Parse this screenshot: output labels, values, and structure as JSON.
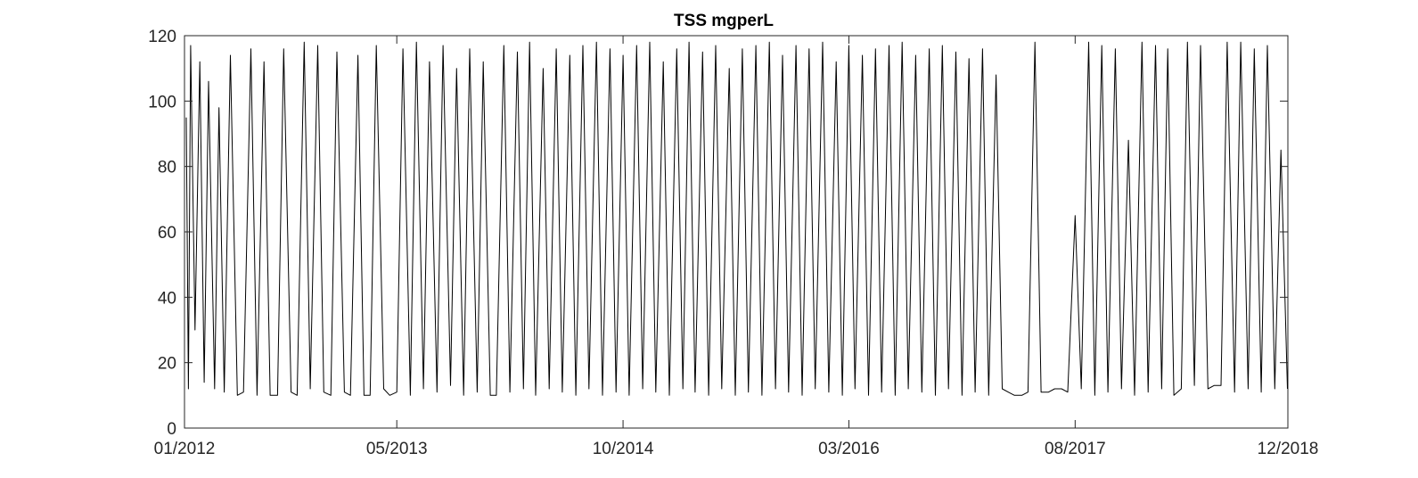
{
  "chart_data": {
    "type": "line",
    "title": "TSS mgperL",
    "xlabel": "",
    "ylabel": "",
    "x_tick_labels": [
      "01/2012",
      "05/2013",
      "10/2014",
      "03/2016",
      "08/2017",
      "12/2018"
    ],
    "x_ticks": [
      "2012-01-01",
      "2013-05-01",
      "2014-10-01",
      "2016-03-01",
      "2017-08-01",
      "2018-12-01"
    ],
    "xlim": [
      "2012-01-01",
      "2018-12-01"
    ],
    "y_ticks": [
      0,
      20,
      40,
      60,
      80,
      100,
      120
    ],
    "ylim": [
      0,
      120
    ],
    "grid": false,
    "colors": {
      "line": "#000000",
      "axes": "#262626"
    },
    "series": [
      {
        "x": [
          "2012-01-05",
          "2012-01-10",
          "2012-01-15",
          "2012-01-25",
          "2012-02-05",
          "2012-02-15",
          "2012-02-25",
          "2012-03-10",
          "2012-03-20",
          "2012-04-01",
          "2012-04-15",
          "2012-05-01",
          "2012-05-15",
          "2012-06-01",
          "2012-06-15",
          "2012-07-01",
          "2012-07-15",
          "2012-08-01",
          "2012-08-15",
          "2012-09-01",
          "2012-09-15",
          "2012-10-01",
          "2012-10-15",
          "2012-11-01",
          "2012-11-15",
          "2012-12-01",
          "2012-12-15",
          "2013-01-01",
          "2013-01-15",
          "2013-02-01",
          "2013-02-15",
          "2013-03-01",
          "2013-03-15",
          "2013-04-01",
          "2013-04-15",
          "2013-05-01",
          "2013-05-15",
          "2013-06-01",
          "2013-06-15",
          "2013-07-01",
          "2013-07-15",
          "2013-08-01",
          "2013-08-15",
          "2013-09-01",
          "2013-09-15",
          "2013-10-01",
          "2013-10-15",
          "2013-11-01",
          "2013-11-15",
          "2013-12-01",
          "2013-12-15",
          "2014-01-01",
          "2014-01-15",
          "2014-02-01",
          "2014-02-15",
          "2014-03-01",
          "2014-03-15",
          "2014-04-01",
          "2014-04-15",
          "2014-05-01",
          "2014-05-15",
          "2014-06-01",
          "2014-06-15",
          "2014-07-01",
          "2014-07-15",
          "2014-08-01",
          "2014-08-15",
          "2014-09-01",
          "2014-09-15",
          "2014-10-01",
          "2014-10-15",
          "2014-11-01",
          "2014-11-15",
          "2014-12-01",
          "2014-12-15",
          "2015-01-01",
          "2015-01-15",
          "2015-02-01",
          "2015-02-15",
          "2015-03-01",
          "2015-03-15",
          "2015-04-01",
          "2015-04-15",
          "2015-05-01",
          "2015-05-15",
          "2015-06-01",
          "2015-06-15",
          "2015-07-01",
          "2015-07-15",
          "2015-08-01",
          "2015-08-15",
          "2015-09-01",
          "2015-09-15",
          "2015-10-01",
          "2015-10-15",
          "2015-11-01",
          "2015-11-15",
          "2015-12-01",
          "2015-12-15",
          "2016-01-01",
          "2016-01-15",
          "2016-02-01",
          "2016-02-15",
          "2016-03-01",
          "2016-03-15",
          "2016-04-01",
          "2016-04-15",
          "2016-05-01",
          "2016-05-15",
          "2016-06-01",
          "2016-06-15",
          "2016-07-01",
          "2016-07-15",
          "2016-08-01",
          "2016-08-15",
          "2016-09-01",
          "2016-09-15",
          "2016-10-01",
          "2016-10-15",
          "2016-11-01",
          "2016-11-15",
          "2016-12-01",
          "2016-12-15",
          "2017-01-01",
          "2017-01-15",
          "2017-02-01",
          "2017-02-15",
          "2017-03-01",
          "2017-03-15",
          "2017-04-01",
          "2017-04-15",
          "2017-05-01",
          "2017-05-15",
          "2017-06-01",
          "2017-06-15",
          "2017-07-01",
          "2017-07-15",
          "2017-08-01",
          "2017-08-15",
          "2017-09-01",
          "2017-09-15",
          "2017-10-01",
          "2017-10-15",
          "2017-11-01",
          "2017-11-15",
          "2017-12-01",
          "2017-12-15",
          "2018-01-01",
          "2018-01-15",
          "2018-02-01",
          "2018-02-15",
          "2018-03-01",
          "2018-03-15",
          "2018-04-01",
          "2018-04-15",
          "2018-05-01",
          "2018-05-15",
          "2018-06-01",
          "2018-06-15",
          "2018-07-01",
          "2018-07-15",
          "2018-08-01",
          "2018-08-15",
          "2018-09-01",
          "2018-09-15",
          "2018-10-01",
          "2018-10-15",
          "2018-11-01",
          "2018-11-15",
          "2018-11-30"
        ],
        "values": [
          95,
          12,
          117,
          30,
          112,
          14,
          106,
          12,
          98,
          11,
          114,
          10,
          11,
          116,
          10,
          112,
          10,
          10,
          116,
          11,
          10,
          118,
          12,
          117,
          11,
          10,
          115,
          11,
          10,
          114,
          10,
          10,
          117,
          12,
          10,
          11,
          116,
          10,
          118,
          12,
          112,
          11,
          117,
          13,
          110,
          10,
          116,
          11,
          112,
          10,
          10,
          117,
          11,
          115,
          12,
          118,
          10,
          110,
          12,
          116,
          11,
          114,
          10,
          117,
          12,
          118,
          10,
          116,
          11,
          114,
          10,
          117,
          12,
          118,
          11,
          112,
          10,
          116,
          12,
          118,
          11,
          115,
          10,
          117,
          12,
          110,
          10,
          116,
          11,
          117,
          10,
          118,
          12,
          114,
          11,
          117,
          10,
          116,
          12,
          118,
          11,
          112,
          10,
          117,
          12,
          114,
          10,
          116,
          11,
          117,
          10,
          118,
          12,
          114,
          11,
          116,
          10,
          117,
          12,
          115,
          10,
          113,
          11,
          116,
          10,
          108,
          12,
          11,
          10,
          10,
          11,
          118,
          11,
          11,
          12,
          12,
          11,
          65,
          12,
          118,
          10,
          117,
          11,
          116,
          12,
          88,
          10,
          118,
          11,
          117,
          12,
          116,
          10,
          12,
          118,
          13,
          117,
          12,
          13,
          13,
          118,
          11,
          118,
          12,
          116,
          11,
          117,
          12,
          85,
          12
        ]
      }
    ]
  }
}
